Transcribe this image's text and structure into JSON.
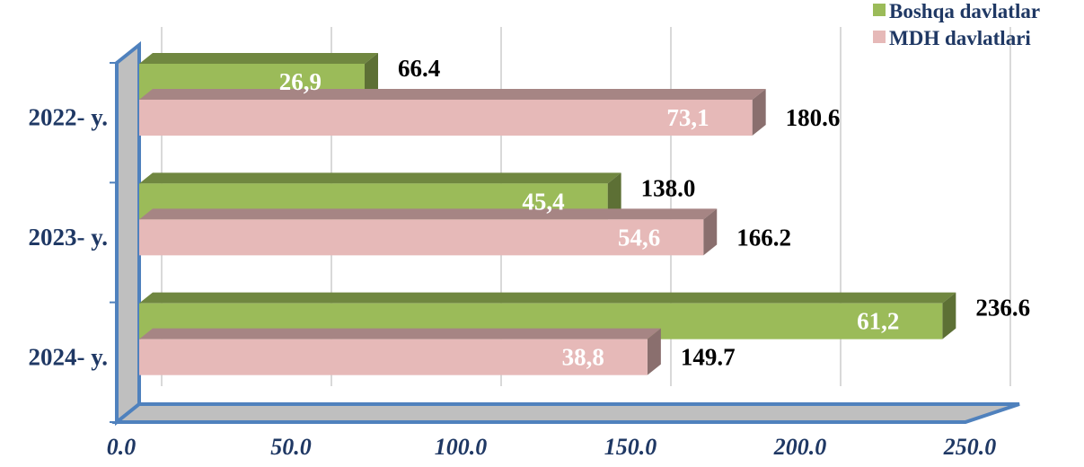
{
  "chart_data": {
    "type": "bar",
    "orientation": "horizontal",
    "categories": [
      "2022- y.",
      "2023- y.",
      "2024- y."
    ],
    "series": [
      {
        "name": "Boshqa davlatlar",
        "values": [
          66.4,
          138.0,
          236.6
        ],
        "value_labels": [
          "66.4",
          "138.0",
          "236.6"
        ],
        "share_labels": [
          "26,9",
          "45,4",
          "61,2"
        ],
        "color": "#9bbb59"
      },
      {
        "name": "MDH davlatlari",
        "values": [
          180.6,
          166.2,
          149.7
        ],
        "value_labels": [
          "180.6",
          "166.2",
          "149.7"
        ],
        "share_labels": [
          "73,1",
          "54,6",
          "38,8"
        ],
        "color": "#e6b9b8"
      }
    ],
    "xlim": [
      0,
      250
    ],
    "x_ticks": [
      "0.0",
      "50.0",
      "100.0",
      "150.0",
      "200.0",
      "250.0"
    ],
    "grid": true,
    "legend_position": "top-right",
    "style": "3d",
    "colors": {
      "axis": "#4f81bd",
      "floor": "#bfbfbf",
      "wall": "#bfbfbf",
      "gridline": "#d9d9d9",
      "label_text": "#1f3864"
    }
  }
}
